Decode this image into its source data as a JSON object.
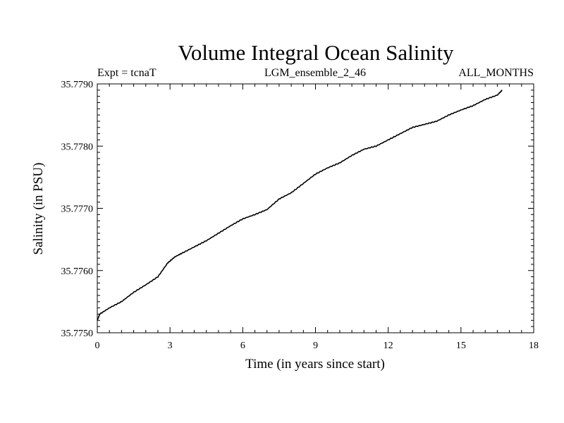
{
  "chart_data": {
    "type": "line",
    "title": "Volume Integral Ocean Salinity",
    "subtitle_left": "Expt = tcnaT",
    "subtitle_center": "LGM_ensemble_2_46",
    "subtitle_right": "ALL_MONTHS",
    "xlabel": "Time (in years since start)",
    "ylabel": "Salinity (in PSU)",
    "xlim": [
      0,
      18
    ],
    "ylim": [
      35.775,
      35.779
    ],
    "xticks": [
      0,
      3,
      6,
      9,
      12,
      15,
      18
    ],
    "xtick_labels": [
      "0",
      "3",
      "6",
      "9",
      "12",
      "15",
      "18"
    ],
    "yticks": [
      35.775,
      35.776,
      35.777,
      35.778,
      35.779
    ],
    "ytick_labels": [
      "35.7750",
      "35.7760",
      "35.7770",
      "35.7780",
      "35.7790"
    ],
    "grid": false,
    "series": [
      {
        "name": "Volume Integral Ocean Salinity",
        "color": "#000000",
        "x": [
          0,
          0.1,
          0.5,
          1.0,
          1.5,
          2.0,
          2.5,
          2.9,
          3.2,
          3.5,
          4.0,
          4.5,
          5.0,
          5.5,
          6.0,
          6.5,
          7.0,
          7.5,
          8.0,
          8.5,
          9.0,
          9.5,
          10.0,
          10.5,
          11.0,
          11.5,
          12.0,
          12.5,
          13.0,
          13.5,
          14.0,
          14.5,
          15.0,
          15.5,
          16.0,
          16.5,
          16.7
        ],
        "values": [
          35.7752,
          35.7753,
          35.7754,
          35.7755,
          35.77565,
          35.77577,
          35.7759,
          35.77612,
          35.77622,
          35.77628,
          35.77638,
          35.77648,
          35.7766,
          35.77672,
          35.77683,
          35.7769,
          35.77698,
          35.77715,
          35.77725,
          35.7774,
          35.77755,
          35.77765,
          35.77773,
          35.77785,
          35.77795,
          35.778,
          35.7781,
          35.7782,
          35.7783,
          35.77835,
          35.7784,
          35.7785,
          35.77858,
          35.77865,
          35.77875,
          35.77882,
          35.7789
        ]
      }
    ]
  }
}
